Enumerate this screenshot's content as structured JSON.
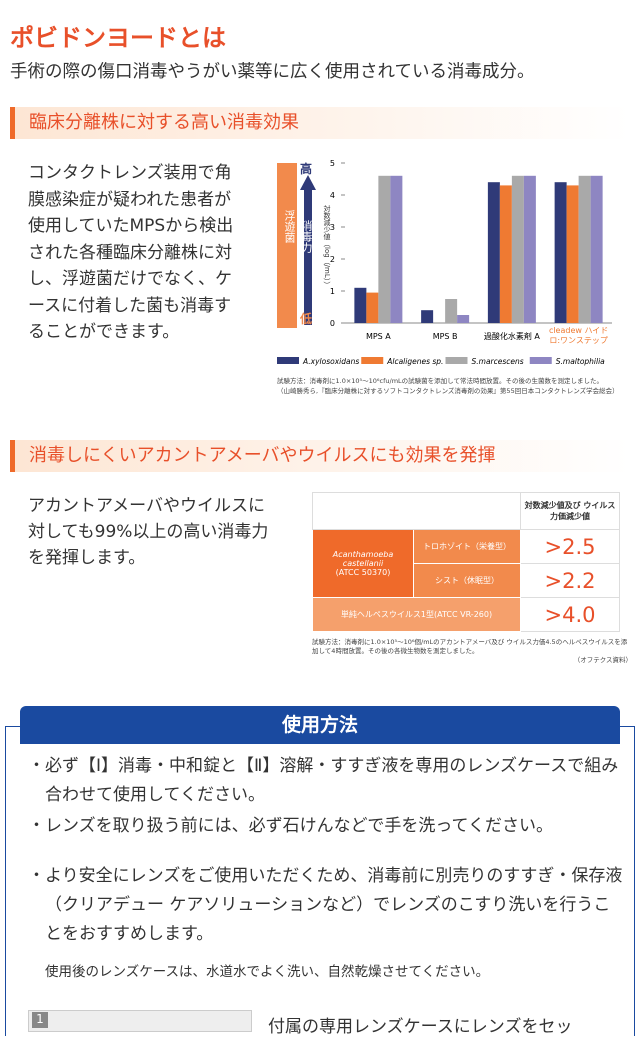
{
  "header": {
    "title": "ポビドンヨードとは",
    "intro": "手術の際の傷口消毒やうがい薬等に広く使用されている消毒成分。"
  },
  "section1": {
    "heading": "臨床分離株に対する高い消毒効果",
    "body": "コンタクトレンズ装用で角膜感染症が疑われた患者が使用していたMPSから検出された各種臨床分離株に対し、浮遊菌だけでなく、ケースに付着した菌も消毒することができます。",
    "chart_data": {
      "type": "bar",
      "y_label": "対数減少値（log（/mL））",
      "scale_high": "高",
      "scale_low": "低",
      "scale_name": "消毒力",
      "scale_target": "浮遊菌",
      "categories": [
        "MPS A",
        "MPS B",
        "過酸化水素剤 A",
        "cleadew ハイドロ:ワンステップ"
      ],
      "series": [
        {
          "name": "A.xylosoxidans",
          "color": "#2f3a78",
          "values": [
            1.1,
            0.4,
            4.4,
            4.4
          ]
        },
        {
          "name": "Alcaligenes sp.",
          "color": "#ef7a32",
          "values": [
            0.95,
            null,
            4.3,
            4.3
          ]
        },
        {
          "name": "S.marcescens",
          "color": "#a9a9a9",
          "values": [
            4.6,
            0.75,
            4.6,
            4.6
          ]
        },
        {
          "name": "S.maltophilia",
          "color": "#8e86c2",
          "values": [
            4.6,
            0.25,
            4.6,
            4.6
          ]
        }
      ],
      "ylim": [
        0,
        5
      ],
      "yticks": [
        0,
        1,
        2,
        3,
        4,
        5
      ]
    },
    "notes": [
      "試験方法：消毒剤に1.0×10⁵～10⁶cfu/mLの試験菌を添加して常法時間放置。その後の生菌数を測定しました。",
      "（山崎勝秀ら,『臨床分離株に対するソフトコンタクトレンズ消毒剤の効果』第55回日本コンタクトレンズ学会総会）"
    ]
  },
  "section2": {
    "heading": "消毒しにくいアカントアメーバやウイルスにも効果を発揮",
    "body": "アカントアメーバやウイルスに対しても99%以上の高い消毒力を発揮します。",
    "table": {
      "header": "対数減少値及び ウイルス力価減少値",
      "organism": "Acanthamoeba castellanii",
      "strain": "(ATCC 50370)",
      "rows": [
        [
          "トロホゾイト（栄養型）",
          ">2.5"
        ],
        [
          "シスト（休眠型）",
          ">2.2"
        ],
        [
          "単純ヘルペスウイルス1型(ATCC VR-260)",
          ">4.0"
        ]
      ]
    },
    "notes": [
      "試験方法：消毒剤に1.0×10⁵～10⁶個/mLのアカントアメーバ及び ウイルス力価4.5のヘルペスウイルスを添加して4時間放置。その後の各微生物数を測定しました。",
      "（オフテクス資料）"
    ]
  },
  "section3": {
    "heading": "使用方法",
    "bullets": [
      "・必ず【Ⅰ】消毒・中和錠と【Ⅱ】溶解・すすぎ液を専用のレンズケースで組み合わせて使用してください。",
      "・レンズを取り扱う前には、必ず石けんなどで手を洗ってください。",
      "・より安全にレンズをご使用いただくため、消毒前に別売りのすすぎ・保存液（クリアデュー ケアソリューションなど）でレンズのこすり洗いを行うことをおすすめします。"
    ],
    "note": "使用後のレンズケースは、水道水でよく洗い、自然乾燥させてください。",
    "step_number": "1",
    "step_text": "付属の専用レンズケースにレンズをセッ"
  }
}
